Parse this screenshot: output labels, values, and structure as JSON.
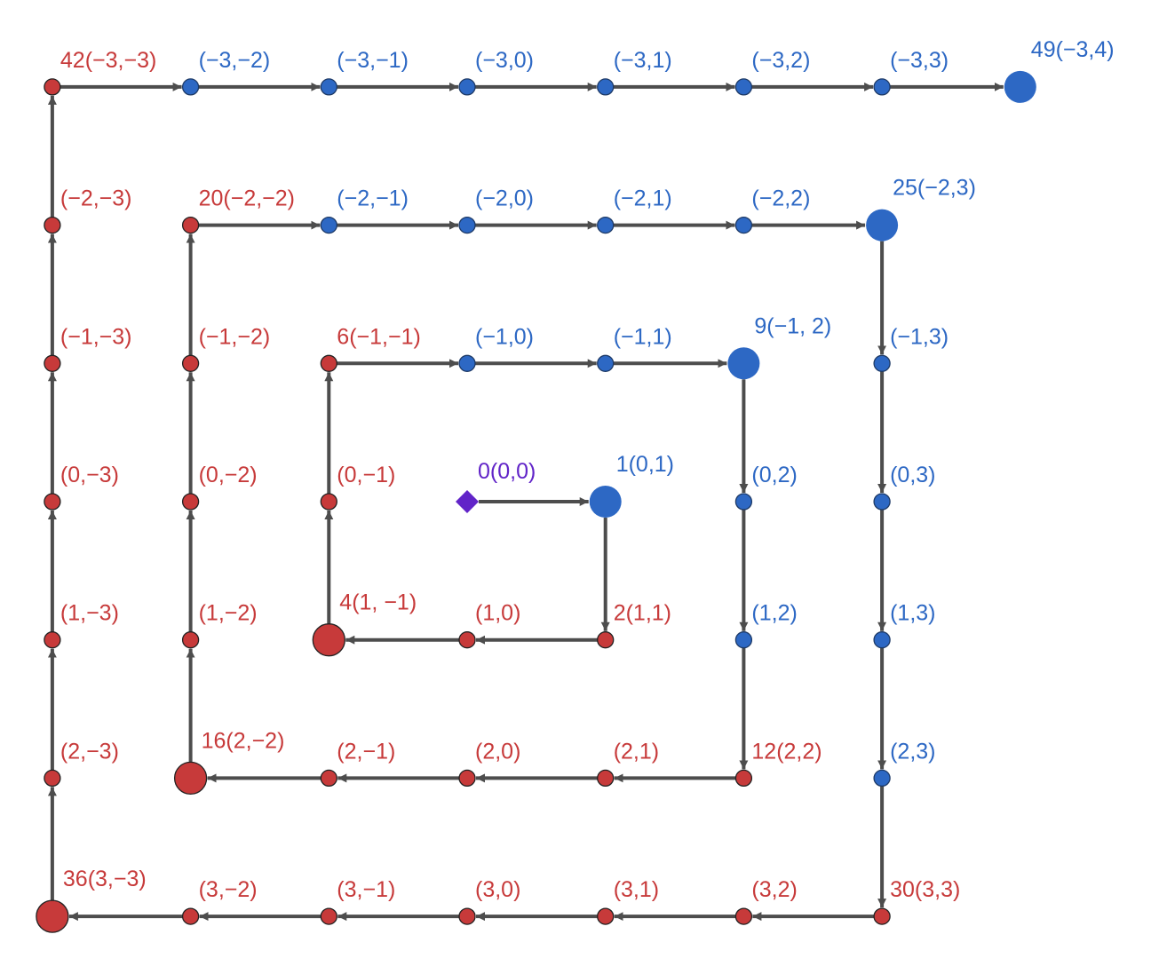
{
  "colors": {
    "red": "#c73a3a",
    "blue": "#2d68c4",
    "purple": "#6124c8",
    "edge": "#4d4d4d"
  },
  "origin": {
    "row": 0,
    "col": 0,
    "label": "0(0,0)",
    "color": "purple"
  },
  "nodes": [
    {
      "row": 0,
      "col": 1,
      "label": "1(0,1)",
      "color": "blue",
      "big": true
    },
    {
      "row": 1,
      "col": 1,
      "label": "2(1,1)",
      "color": "red",
      "big": false
    },
    {
      "row": 1,
      "col": 0,
      "label": "(1,0)",
      "color": "red",
      "big": false
    },
    {
      "row": 1,
      "col": -1,
      "label": "4(1, −1)",
      "color": "red",
      "big": true
    },
    {
      "row": 0,
      "col": -1,
      "label": "(0,−1)",
      "color": "red",
      "big": false
    },
    {
      "row": -1,
      "col": -1,
      "label": "6(−1,−1)",
      "color": "red",
      "big": false
    },
    {
      "row": -1,
      "col": 0,
      "label": "(−1,0)",
      "color": "blue",
      "big": false
    },
    {
      "row": -1,
      "col": 1,
      "label": "(−1,1)",
      "color": "blue",
      "big": false
    },
    {
      "row": -1,
      "col": 2,
      "label": "9(−1, 2)",
      "color": "blue",
      "big": true
    },
    {
      "row": 0,
      "col": 2,
      "label": "(0,2)",
      "color": "blue",
      "big": false
    },
    {
      "row": 1,
      "col": 2,
      "label": "(1,2)",
      "color": "blue",
      "big": false
    },
    {
      "row": 2,
      "col": 2,
      "label": "12(2,2)",
      "color": "red",
      "big": false
    },
    {
      "row": 2,
      "col": 1,
      "label": "(2,1)",
      "color": "red",
      "big": false
    },
    {
      "row": 2,
      "col": 0,
      "label": "(2,0)",
      "color": "red",
      "big": false
    },
    {
      "row": 2,
      "col": -1,
      "label": "(2,−1)",
      "color": "red",
      "big": false
    },
    {
      "row": 2,
      "col": -2,
      "label": "16(2,−2)",
      "color": "red",
      "big": true
    },
    {
      "row": 1,
      "col": -2,
      "label": "(1,−2)",
      "color": "red",
      "big": false
    },
    {
      "row": 0,
      "col": -2,
      "label": "(0,−2)",
      "color": "red",
      "big": false
    },
    {
      "row": -1,
      "col": -2,
      "label": "(−1,−2)",
      "color": "red",
      "big": false
    },
    {
      "row": -2,
      "col": -2,
      "label": "20(−2,−2)",
      "color": "red",
      "big": false
    },
    {
      "row": -2,
      "col": -1,
      "label": "(−2,−1)",
      "color": "blue",
      "big": false
    },
    {
      "row": -2,
      "col": 0,
      "label": "(−2,0)",
      "color": "blue",
      "big": false
    },
    {
      "row": -2,
      "col": 1,
      "label": "(−2,1)",
      "color": "blue",
      "big": false
    },
    {
      "row": -2,
      "col": 2,
      "label": "(−2,2)",
      "color": "blue",
      "big": false
    },
    {
      "row": -2,
      "col": 3,
      "label": "25(−2,3)",
      "color": "blue",
      "big": true
    },
    {
      "row": -1,
      "col": 3,
      "label": "(−1,3)",
      "color": "blue",
      "big": false
    },
    {
      "row": 0,
      "col": 3,
      "label": "(0,3)",
      "color": "blue",
      "big": false
    },
    {
      "row": 1,
      "col": 3,
      "label": "(1,3)",
      "color": "blue",
      "big": false
    },
    {
      "row": 2,
      "col": 3,
      "label": "(2,3)",
      "color": "blue",
      "big": false
    },
    {
      "row": 3,
      "col": 3,
      "label": "30(3,3)",
      "color": "red",
      "big": false
    },
    {
      "row": 3,
      "col": 2,
      "label": "(3,2)",
      "color": "red",
      "big": false
    },
    {
      "row": 3,
      "col": 1,
      "label": "(3,1)",
      "color": "red",
      "big": false
    },
    {
      "row": 3,
      "col": 0,
      "label": "(3,0)",
      "color": "red",
      "big": false
    },
    {
      "row": 3,
      "col": -1,
      "label": "(3,−1)",
      "color": "red",
      "big": false
    },
    {
      "row": 3,
      "col": -2,
      "label": "(3,−2)",
      "color": "red",
      "big": false
    },
    {
      "row": 3,
      "col": -3,
      "label": "36(3,−3)",
      "color": "red",
      "big": true
    },
    {
      "row": 2,
      "col": -3,
      "label": "(2,−3)",
      "color": "red",
      "big": false
    },
    {
      "row": 1,
      "col": -3,
      "label": "(1,−3)",
      "color": "red",
      "big": false
    },
    {
      "row": 0,
      "col": -3,
      "label": "(0,−3)",
      "color": "red",
      "big": false
    },
    {
      "row": -1,
      "col": -3,
      "label": "(−1,−3)",
      "color": "red",
      "big": false
    },
    {
      "row": -2,
      "col": -3,
      "label": "(−2,−3)",
      "color": "red",
      "big": false
    },
    {
      "row": -3,
      "col": -3,
      "label": "42(−3,−3)",
      "color": "red",
      "big": false
    },
    {
      "row": -3,
      "col": -2,
      "label": "(−3,−2)",
      "color": "blue",
      "big": false
    },
    {
      "row": -3,
      "col": -1,
      "label": "(−3,−1)",
      "color": "blue",
      "big": false
    },
    {
      "row": -3,
      "col": 0,
      "label": "(−3,0)",
      "color": "blue",
      "big": false
    },
    {
      "row": -3,
      "col": 1,
      "label": "(−3,1)",
      "color": "blue",
      "big": false
    },
    {
      "row": -3,
      "col": 2,
      "label": "(−3,2)",
      "color": "blue",
      "big": false
    },
    {
      "row": -3,
      "col": 3,
      "label": "(−3,3)",
      "color": "blue",
      "big": false
    },
    {
      "row": -3,
      "col": 4,
      "label": "49(−3,4)",
      "color": "blue",
      "big": true
    }
  ]
}
